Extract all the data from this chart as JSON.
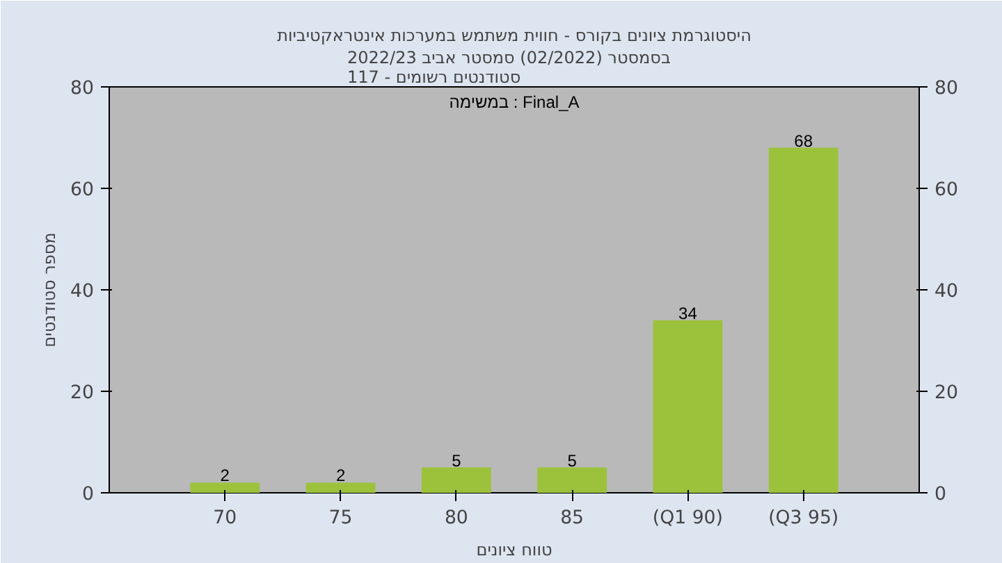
{
  "chart_data": {
    "type": "bar",
    "title": "היסטוגרמת ציונים בקורס - חווית משתמש במערכות אינטראקטיביות",
    "subtitle": "בסמסטר  (02/2022)  סמסטר אביב 2022/23\nסטודנטים רשומים - 117",
    "xlabel": "טווח ציונים",
    "ylabel": "מספר סטודנטים",
    "annotations": [
      "במשימה : Final_A"
    ],
    "categories": [
      "70",
      "75",
      "80",
      "85",
      "(Q1 90)",
      "(Q3 95)"
    ],
    "series": [
      {
        "color": "#9cc23c",
        "values": [
          2,
          2,
          5,
          5,
          34,
          68
        ]
      }
    ],
    "data_labels": true,
    "ylim": [
      0,
      80
    ],
    "yticks": [
      0,
      20,
      40,
      60,
      80
    ],
    "y2lim": [
      0,
      80
    ],
    "y2ticks": [
      0,
      20,
      40,
      60,
      80
    ],
    "grid": false
  }
}
